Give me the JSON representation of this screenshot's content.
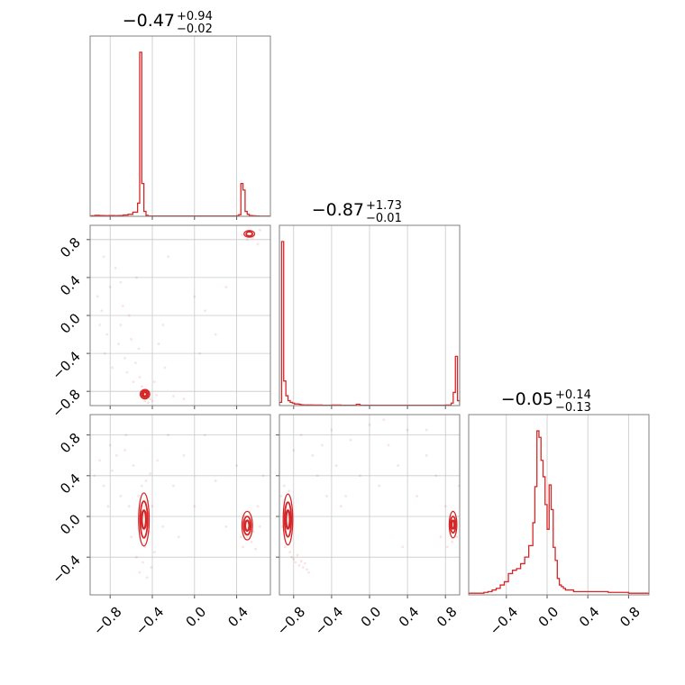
{
  "chart_data": {
    "type": "corner",
    "color": "#d62728",
    "parameters": [
      {
        "median": "−0.47",
        "plus": "+0.94",
        "minus": "−0.02"
      },
      {
        "median": "−0.87",
        "plus": "+1.73",
        "minus": "−0.01"
      },
      {
        "median": "−0.05",
        "plus": "+0.14",
        "minus": "−0.13"
      }
    ],
    "ranges": [
      [
        -0.99,
        0.72
      ],
      [
        -0.95,
        0.95
      ],
      [
        -0.77,
        1.0
      ]
    ],
    "ticks": [
      {
        "values": [
          -0.8,
          -0.4,
          0.0,
          0.4
        ],
        "labels": [
          "−0.8",
          "−0.4",
          "0.0",
          "0.4"
        ]
      },
      {
        "values": [
          -0.8,
          -0.4,
          0.0,
          0.4,
          0.8
        ],
        "labels": [
          "−0.8",
          "−0.4",
          "0.0",
          "0.4",
          "0.8"
        ]
      },
      {
        "values": [
          -0.4,
          0.0,
          0.4,
          0.8
        ],
        "labels": [
          "−0.4",
          "0.0",
          "0.4",
          "0.8"
        ]
      }
    ],
    "histograms": [
      {
        "edges": [
          -0.99,
          -0.945,
          -0.9,
          -0.855,
          -0.81,
          -0.765,
          -0.72,
          -0.675,
          -0.63,
          -0.585,
          -0.54,
          -0.52,
          -0.5,
          -0.48,
          -0.46,
          -0.44,
          0.4,
          0.42,
          0.44,
          0.46,
          0.48,
          0.5,
          0.52,
          0.55,
          0.58,
          0.61,
          0.72
        ],
        "counts": [
          0.3,
          0.6,
          0.5,
          0.4,
          0.5,
          0.4,
          0.5,
          0.8,
          1.2,
          2.5,
          8,
          100,
          20,
          3,
          0.6,
          0.2,
          0.4,
          1,
          20,
          16,
          3,
          1.2,
          0.5,
          0.3,
          0.2,
          0.1
        ]
      },
      {
        "edges": [
          -0.95,
          -0.927,
          -0.905,
          -0.882,
          -0.859,
          -0.836,
          -0.814,
          -0.791,
          -0.768,
          -0.745,
          -0.723,
          -0.7,
          -0.6,
          -0.5,
          -0.4,
          -0.3,
          -0.2,
          -0.14,
          -0.1,
          0.0,
          0.2,
          0.4,
          0.6,
          0.8,
          0.86,
          0.882,
          0.905,
          0.927,
          0.95
        ],
        "counts": [
          2,
          100,
          15,
          6,
          3,
          2,
          1.5,
          1,
          1,
          0.8,
          0.5,
          0.4,
          0.3,
          0.2,
          0.3,
          0.2,
          0.2,
          0.8,
          0.2,
          0.2,
          0.2,
          0.2,
          0.2,
          0.3,
          1.5,
          8,
          30,
          3
        ]
      },
      {
        "edges": [
          -0.77,
          -0.62,
          -0.58,
          -0.54,
          -0.5,
          -0.46,
          -0.42,
          -0.38,
          -0.34,
          -0.3,
          -0.26,
          -0.22,
          -0.18,
          -0.14,
          -0.12,
          -0.1,
          -0.08,
          -0.06,
          -0.04,
          -0.02,
          0.0,
          0.02,
          0.04,
          0.06,
          0.08,
          0.1,
          0.12,
          0.14,
          0.16,
          0.18,
          0.22,
          0.26,
          0.3,
          0.4,
          0.5,
          0.6,
          0.7,
          0.8,
          0.9,
          1.0
        ],
        "counts": [
          1,
          1.5,
          2,
          3,
          4,
          6,
          8,
          13,
          15,
          16,
          19,
          23,
          30,
          44,
          66,
          100,
          96,
          82,
          72,
          55,
          40,
          67,
          52,
          29,
          21,
          10,
          6,
          5,
          4,
          3,
          3,
          2,
          2,
          2,
          2,
          1.5,
          1.5,
          1,
          1
        ]
      }
    ],
    "contours": [
      {
        "x": 0,
        "y": 1,
        "regions": [
          {
            "cx": -0.47,
            "cy": -0.83,
            "levels": [
              [
                0.045,
                0.05
              ],
              [
                0.032,
                0.036
              ],
              [
                0.018,
                0.022
              ]
            ]
          },
          {
            "cx": 0.52,
            "cy": 0.86,
            "levels": [
              [
                0.05,
                0.035
              ],
              [
                0.03,
                0.022
              ]
            ]
          }
        ]
      },
      {
        "x": 0,
        "y": 2,
        "regions": [
          {
            "cx": -0.48,
            "cy": -0.03,
            "levels": [
              [
                0.05,
                0.26
              ],
              [
                0.035,
                0.18
              ],
              [
                0.02,
                0.09
              ]
            ]
          },
          {
            "cx": 0.5,
            "cy": -0.09,
            "levels": [
              [
                0.05,
                0.14
              ],
              [
                0.035,
                0.09
              ],
              [
                0.02,
                0.05
              ]
            ]
          }
        ]
      },
      {
        "x": 1,
        "y": 2,
        "regions": [
          {
            "cx": -0.86,
            "cy": -0.03,
            "levels": [
              [
                0.05,
                0.25
              ],
              [
                0.035,
                0.17
              ],
              [
                0.02,
                0.09
              ]
            ]
          },
          {
            "cx": 0.88,
            "cy": -0.08,
            "levels": [
              [
                0.04,
                0.13
              ],
              [
                0.028,
                0.08
              ],
              [
                0.016,
                0.04
              ]
            ]
          }
        ]
      }
    ],
    "samples": [
      {
        "x": 0,
        "y": 1,
        "points": [
          [
            -0.92,
            0.2
          ],
          [
            -0.9,
            -0.1
          ],
          [
            -0.88,
            0.05
          ],
          [
            -0.85,
            -0.4
          ],
          [
            -0.83,
            -0.2
          ],
          [
            -0.8,
            0.3
          ],
          [
            -0.78,
            -0.55
          ],
          [
            -0.75,
            0.5
          ],
          [
            -0.72,
            -0.3
          ],
          [
            -0.7,
            -0.1
          ],
          [
            -0.68,
            0.1
          ],
          [
            -0.66,
            -0.45
          ],
          [
            -0.64,
            -0.6
          ],
          [
            -0.62,
            0.0
          ],
          [
            -0.6,
            -0.25
          ],
          [
            -0.58,
            -0.7
          ],
          [
            -0.56,
            -0.5
          ],
          [
            -0.55,
            0.4
          ],
          [
            -0.53,
            -0.35
          ],
          [
            -0.52,
            -0.65
          ],
          [
            -0.5,
            -0.75
          ],
          [
            -0.49,
            -0.85
          ],
          [
            -0.48,
            -0.8
          ],
          [
            -0.47,
            -0.9
          ],
          [
            -0.46,
            -0.78
          ],
          [
            -0.45,
            -0.86
          ],
          [
            -0.44,
            -0.92
          ],
          [
            -0.43,
            -0.82
          ],
          [
            -0.42,
            -0.88
          ],
          [
            -0.4,
            -0.9
          ],
          [
            -0.38,
            -0.7
          ],
          [
            -0.36,
            -0.84
          ],
          [
            -0.34,
            -0.3
          ],
          [
            -0.3,
            -0.1
          ],
          [
            -0.28,
            -0.55
          ],
          [
            -0.25,
            0.62
          ],
          [
            -0.2,
            -0.85
          ],
          [
            -0.1,
            -0.88
          ],
          [
            0.0,
            0.2
          ],
          [
            0.05,
            -0.4
          ],
          [
            0.1,
            0.05
          ],
          [
            0.2,
            -0.2
          ],
          [
            0.3,
            0.3
          ],
          [
            0.45,
            0.85
          ],
          [
            0.5,
            0.8
          ],
          [
            0.55,
            0.82
          ],
          [
            0.6,
            0.75
          ],
          [
            0.62,
            0.9
          ],
          [
            -0.86,
            0.62
          ],
          [
            -0.7,
            0.35
          ]
        ]
      },
      {
        "x": 0,
        "y": 2,
        "points": [
          [
            -0.95,
            0.4
          ],
          [
            -0.9,
            0.55
          ],
          [
            -0.86,
            0.3
          ],
          [
            -0.8,
            0.7
          ],
          [
            -0.78,
            0.45
          ],
          [
            -0.74,
            0.6
          ],
          [
            -0.7,
            0.2
          ],
          [
            -0.66,
            0.65
          ],
          [
            -0.62,
            0.1
          ],
          [
            -0.6,
            -0.2
          ],
          [
            -0.58,
            0.5
          ],
          [
            -0.55,
            -0.4
          ],
          [
            -0.53,
            0.2
          ],
          [
            -0.52,
            -0.55
          ],
          [
            -0.5,
            0.3
          ],
          [
            -0.49,
            -0.45
          ],
          [
            -0.48,
            0.1
          ],
          [
            -0.47,
            -0.3
          ],
          [
            -0.46,
            0.35
          ],
          [
            -0.45,
            -0.6
          ],
          [
            -0.44,
            0.15
          ],
          [
            -0.43,
            -0.15
          ],
          [
            -0.42,
            0.42
          ],
          [
            -0.41,
            -0.5
          ],
          [
            -0.4,
            0.1
          ],
          [
            -0.38,
            -0.35
          ],
          [
            -0.35,
            0.55
          ],
          [
            -0.3,
            -0.1
          ],
          [
            -0.25,
            0.8
          ],
          [
            -0.2,
            0.3
          ],
          [
            -0.15,
            -0.2
          ],
          [
            -0.1,
            0.6
          ],
          [
            0.0,
            0.1
          ],
          [
            0.1,
            0.8
          ],
          [
            0.2,
            0.35
          ],
          [
            0.3,
            -0.1
          ],
          [
            0.4,
            0.5
          ],
          [
            0.44,
            -0.2
          ],
          [
            0.46,
            -0.3
          ],
          [
            0.48,
            0.0
          ],
          [
            0.5,
            -0.2
          ],
          [
            0.52,
            0.05
          ],
          [
            0.54,
            -0.25
          ],
          [
            0.56,
            -0.15
          ],
          [
            0.58,
            -0.32
          ],
          [
            0.6,
            0.1
          ],
          [
            0.62,
            -0.1
          ],
          [
            0.65,
            0.4
          ],
          [
            -0.65,
            0.8
          ],
          [
            -0.82,
            0.1
          ]
        ]
      },
      {
        "x": 1,
        "y": 2,
        "points": [
          [
            -0.93,
            0.2
          ],
          [
            -0.92,
            -0.1
          ],
          [
            -0.9,
            0.3
          ],
          [
            -0.89,
            -0.3
          ],
          [
            -0.88,
            0.1
          ],
          [
            -0.86,
            -0.2
          ],
          [
            -0.85,
            0.25
          ],
          [
            -0.84,
            -0.35
          ],
          [
            -0.82,
            -0.4
          ],
          [
            -0.8,
            -0.42
          ],
          [
            -0.78,
            -0.45
          ],
          [
            -0.76,
            -0.38
          ],
          [
            -0.74,
            -0.48
          ],
          [
            -0.72,
            -0.44
          ],
          [
            -0.7,
            -0.5
          ],
          [
            -0.68,
            -0.46
          ],
          [
            -0.66,
            -0.52
          ],
          [
            -0.64,
            -0.55
          ],
          [
            -0.6,
            0.6
          ],
          [
            -0.55,
            0.4
          ],
          [
            -0.5,
            0.7
          ],
          [
            -0.45,
            0.2
          ],
          [
            -0.4,
            0.85
          ],
          [
            -0.35,
            0.5
          ],
          [
            -0.3,
            0.1
          ],
          [
            -0.2,
            0.75
          ],
          [
            -0.1,
            0.4
          ],
          [
            0.0,
            0.9
          ],
          [
            0.1,
            0.3
          ],
          [
            0.2,
            0.7
          ],
          [
            0.3,
            0.5
          ],
          [
            0.4,
            0.85
          ],
          [
            0.5,
            0.2
          ],
          [
            0.6,
            0.6
          ],
          [
            0.7,
            0.4
          ],
          [
            0.75,
            -0.2
          ],
          [
            0.8,
            0.1
          ],
          [
            0.82,
            -0.3
          ],
          [
            0.85,
            -0.1
          ],
          [
            0.87,
            -0.25
          ],
          [
            0.88,
            0.05
          ],
          [
            0.9,
            -0.15
          ],
          [
            0.92,
            -0.2
          ],
          [
            0.94,
            0.3
          ],
          [
            -0.72,
            0.8
          ],
          [
            -0.8,
            0.65
          ],
          [
            0.35,
            -0.3
          ],
          [
            0.6,
            0.85
          ],
          [
            -0.25,
            0.2
          ],
          [
            0.15,
            0.95
          ]
        ]
      }
    ]
  }
}
